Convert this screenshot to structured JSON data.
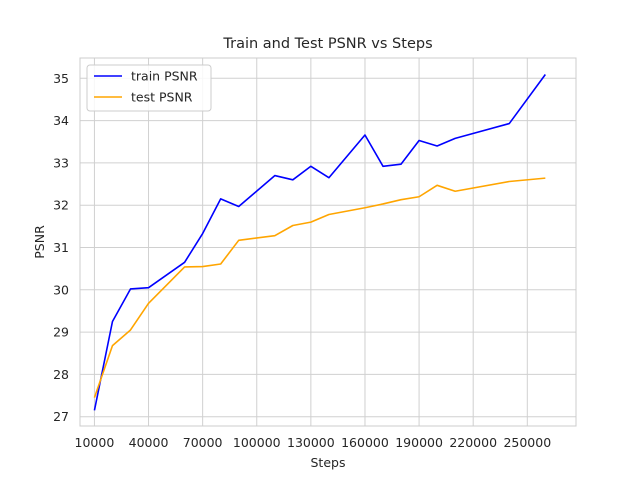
{
  "chart_data": {
    "type": "line",
    "title": "Train and Test PSNR vs Steps",
    "xlabel": "Steps",
    "ylabel": "PSNR",
    "xlim": [
      2000,
      277000
    ],
    "ylim": [
      26.78,
      35.48
    ],
    "xticks": [
      10000,
      40000,
      70000,
      100000,
      130000,
      160000,
      190000,
      220000,
      250000
    ],
    "xtick_labels": [
      "10000",
      "40000",
      "70000",
      "100000",
      "130000",
      "160000",
      "190000",
      "220000",
      "250000"
    ],
    "yticks": [
      27,
      28,
      29,
      30,
      31,
      32,
      33,
      34,
      35
    ],
    "ytick_labels": [
      "27",
      "28",
      "29",
      "30",
      "31",
      "32",
      "33",
      "34",
      "35"
    ],
    "grid": true,
    "legend_position": "top-left",
    "series": [
      {
        "name": "train PSNR",
        "color": "#0000ff",
        "x": [
          10000,
          20000,
          30000,
          40000,
          60000,
          70000,
          80000,
          90000,
          110000,
          120000,
          130000,
          140000,
          160000,
          170000,
          180000,
          190000,
          200000,
          210000,
          240000,
          260000
        ],
        "y": [
          27.15,
          29.25,
          30.02,
          30.05,
          30.65,
          31.33,
          32.15,
          31.97,
          32.7,
          32.6,
          32.92,
          32.65,
          33.66,
          32.92,
          32.97,
          33.53,
          33.4,
          33.58,
          33.93,
          35.09
        ]
      },
      {
        "name": "test PSNR",
        "color": "#ffa500",
        "x": [
          10000,
          20000,
          30000,
          40000,
          60000,
          70000,
          80000,
          90000,
          110000,
          120000,
          130000,
          140000,
          160000,
          170000,
          180000,
          190000,
          200000,
          210000,
          240000,
          260000
        ],
        "y": [
          27.45,
          28.68,
          29.05,
          29.68,
          30.54,
          30.55,
          30.61,
          31.17,
          31.28,
          31.52,
          31.6,
          31.78,
          31.94,
          32.03,
          32.13,
          32.2,
          32.47,
          32.33,
          32.56,
          32.64
        ]
      }
    ]
  }
}
